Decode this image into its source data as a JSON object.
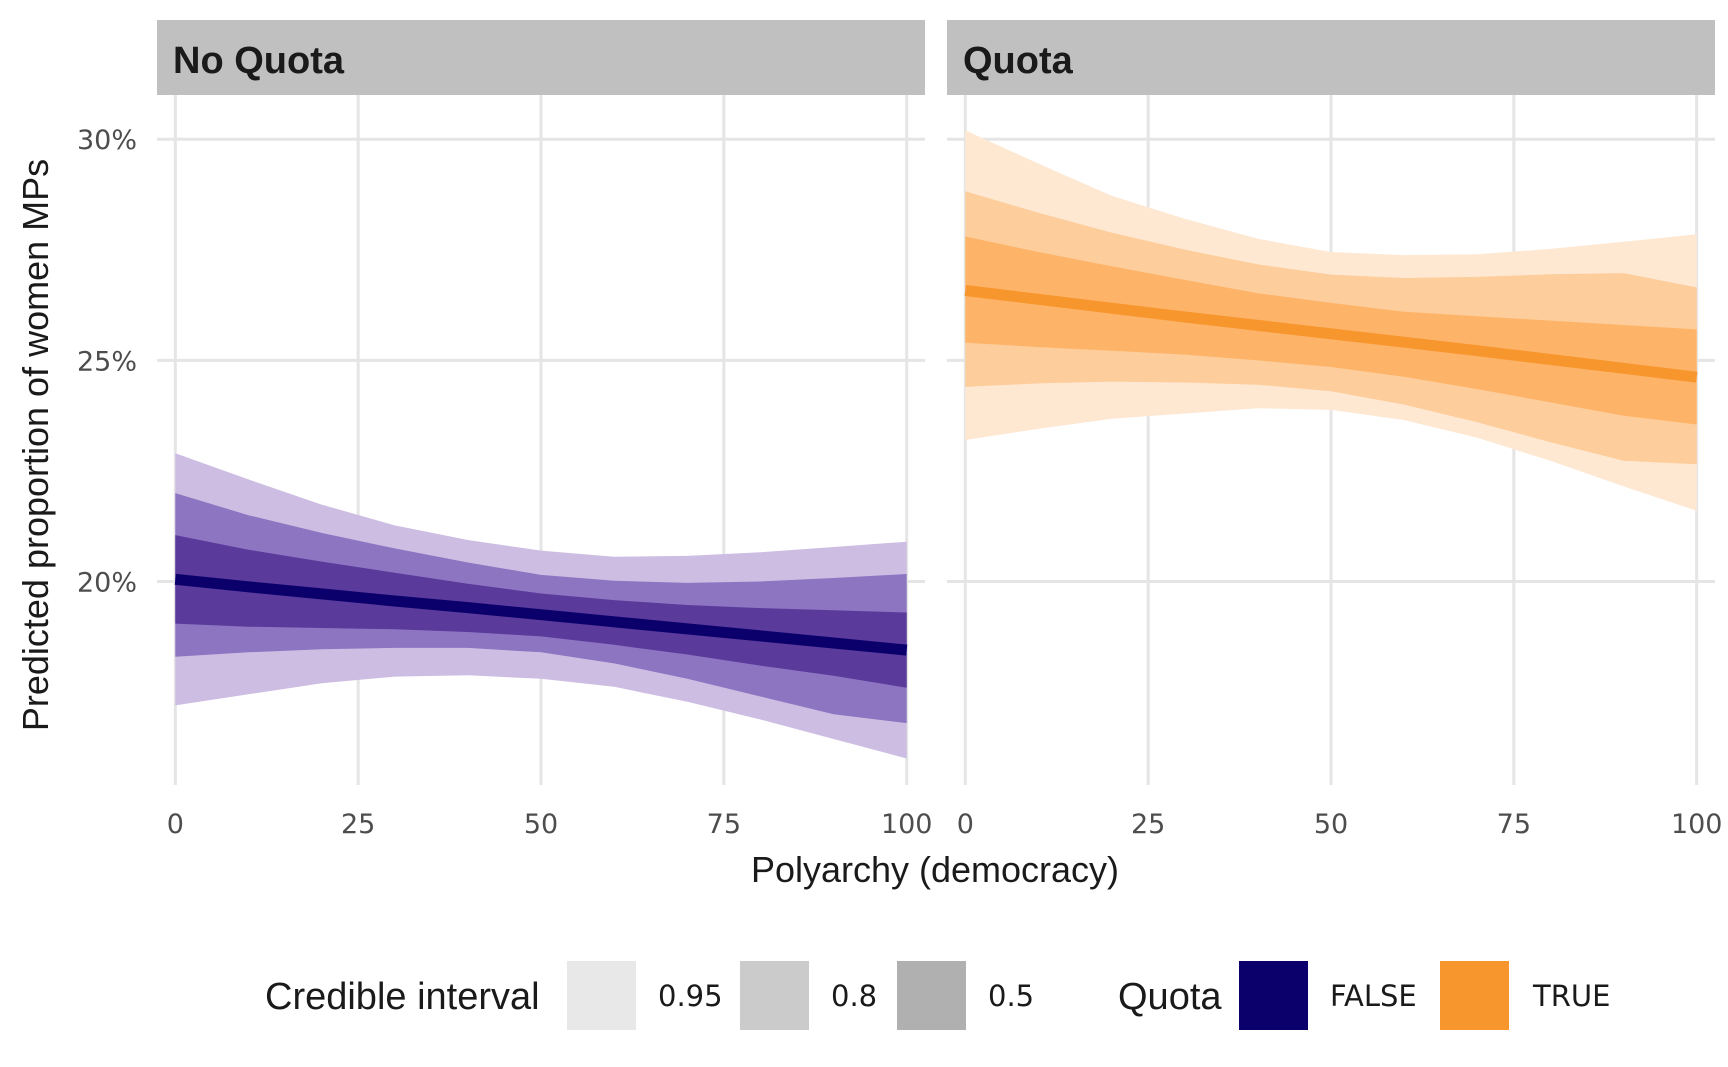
{
  "chart_data": {
    "type": "line",
    "panels": [
      {
        "strip": "No Quota",
        "quota": "FALSE",
        "x": [
          0,
          10,
          20,
          30,
          40,
          50,
          60,
          70,
          80,
          90,
          100
        ],
        "median": [
          20.05,
          19.88,
          19.72,
          19.56,
          19.41,
          19.25,
          19.09,
          18.93,
          18.77,
          18.61,
          18.45
        ],
        "ci50": {
          "lower": [
            19.05,
            18.98,
            18.95,
            18.92,
            18.86,
            18.76,
            18.57,
            18.35,
            18.1,
            17.87,
            17.6
          ],
          "upper": [
            21.05,
            20.72,
            20.45,
            20.2,
            19.95,
            19.73,
            19.58,
            19.47,
            19.4,
            19.35,
            19.3
          ]
        },
        "ci80": {
          "lower": [
            18.3,
            18.4,
            18.47,
            18.5,
            18.5,
            18.4,
            18.15,
            17.8,
            17.4,
            17.0,
            16.8
          ],
          "upper": [
            22.0,
            21.5,
            21.1,
            20.75,
            20.43,
            20.15,
            20.02,
            19.97,
            20.0,
            20.08,
            20.17
          ]
        },
        "ci95": {
          "lower": [
            17.2,
            17.45,
            17.7,
            17.85,
            17.88,
            17.8,
            17.62,
            17.28,
            16.88,
            16.44,
            16.0
          ]
        }
      },
      {
        "strip": "Quota",
        "quota": "TRUE",
        "x": [
          0,
          10,
          20,
          30,
          40,
          50,
          60,
          70,
          80,
          90,
          100
        ],
        "median": [
          26.58,
          26.38,
          26.18,
          25.98,
          25.79,
          25.6,
          25.41,
          25.22,
          25.02,
          24.82,
          24.62
        ],
        "ci50": {
          "lower": [
            25.4,
            25.3,
            25.22,
            25.13,
            25.0,
            24.85,
            24.63,
            24.35,
            24.05,
            23.75,
            23.55
          ],
          "upper": [
            27.8,
            27.45,
            27.13,
            26.82,
            26.52,
            26.3,
            26.1,
            26.0,
            25.9,
            25.8,
            25.7
          ]
        },
        "ci80": {
          "lower": [
            24.4,
            24.48,
            24.52,
            24.5,
            24.45,
            24.3,
            24.0,
            23.6,
            23.15,
            22.73,
            22.65
          ]
        },
        "ci95": {
          "lower": [
            23.2,
            23.45,
            23.68,
            23.8,
            23.92,
            23.88,
            23.65,
            23.25,
            22.73,
            22.15,
            21.6
          ],
          "upper": [
            30.2,
            29.45,
            28.72,
            28.2,
            27.75,
            27.45,
            27.38,
            27.4,
            27.52,
            27.68,
            27.85
          ]
        }
      }
    ],
    "xlabel": "Polyarchy (democracy)",
    "ylabel": "Predicted proportion of women MPs",
    "x_ticks": [
      "0",
      "25",
      "50",
      "75",
      "100"
    ],
    "x_tick_values": [
      0,
      25,
      50,
      75,
      100
    ],
    "y_ticks": [
      "20%",
      "25%",
      "30%"
    ],
    "y_tick_values": [
      20,
      25,
      30
    ],
    "xlim": [
      -2.5,
      102.5
    ],
    "ylim": [
      15.4,
      31
    ],
    "grid": true,
    "legend_position": "bottom",
    "legend": {
      "interval": {
        "title": "Credible interval",
        "levels": [
          "0.95",
          "0.8",
          "0.5"
        ],
        "key_colors": [
          "#e8e8e8",
          "#cbcbcb",
          "#b0b0b0"
        ]
      },
      "quota": {
        "title": "Quota",
        "labels": [
          "FALSE",
          "TRUE"
        ],
        "colors": [
          "#0b006b",
          "#f8962e"
        ]
      }
    },
    "colors": {
      "FALSE": {
        "line": "#0b006b",
        "ci50": "#5a3a9b",
        "ci80": "#8e75c2",
        "ci95": "#cdbde2"
      },
      "TRUE": {
        "line": "#f8962e",
        "ci50": "#fdb469",
        "ci80": "#fdcd9b",
        "ci95": "#fee8d2"
      }
    }
  }
}
